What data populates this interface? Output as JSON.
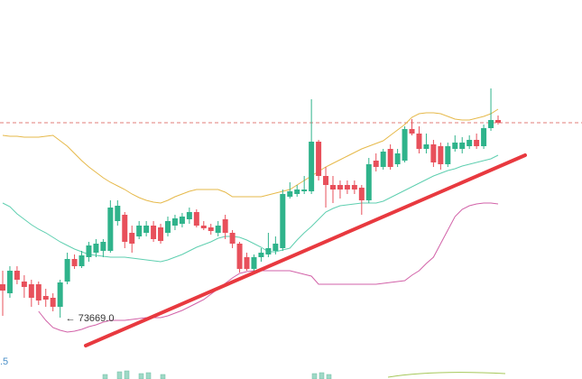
{
  "chart_data": {
    "type": "candlestick",
    "ylim": [
      73601,
      74021
    ],
    "up_color": "#2fb38b",
    "down_color": "#e8505b",
    "open": [
      73706,
      73696,
      73721,
      73709,
      73706,
      73706,
      73693,
      73691,
      73681,
      73709,
      73734,
      73726,
      73736,
      73741,
      73743,
      73743,
      73776,
      73783,
      73763,
      73759,
      73763,
      73771,
      73769,
      73763,
      73771,
      73773,
      73778,
      73786,
      73771,
      73769,
      73763,
      73778,
      73763,
      73751,
      73736,
      73723,
      73736,
      73739,
      73743,
      73746,
      73803,
      73806,
      73809,
      73809,
      73864,
      73826,
      73816,
      73816,
      73816,
      73816,
      73813,
      73799,
      73843,
      73836,
      73856,
      73839,
      73843,
      73878,
      73873,
      73856,
      73861,
      73859,
      73839,
      73856,
      73856,
      73859,
      73866,
      73859,
      73879,
      73888
    ],
    "high": [
      73721,
      73726,
      73726,
      73716,
      73711,
      73709,
      73701,
      73696,
      73711,
      73741,
      73739,
      73743,
      73753,
      73756,
      73756,
      73799,
      73799,
      73786,
      73771,
      73776,
      73776,
      73776,
      73773,
      73781,
      73783,
      73785,
      73791,
      73789,
      73776,
      73773,
      73776,
      73783,
      73766,
      73753,
      73741,
      73739,
      73746,
      73763,
      73759,
      73811,
      73819,
      73816,
      73826,
      73911,
      73866,
      73836,
      73826,
      73821,
      73821,
      73821,
      73816,
      73846,
      73851,
      73856,
      73861,
      73856,
      73881,
      73889,
      73881,
      73873,
      73866,
      73863,
      73863,
      73871,
      73869,
      73871,
      73873,
      73883,
      73923,
      73893
    ],
    "low": [
      73671,
      73691,
      73706,
      73691,
      73681,
      73683,
      73681,
      73676,
      73669,
      73706,
      73723,
      73724,
      73731,
      73736,
      73736,
      73741,
      73771,
      73746,
      73741,
      73756,
      73759,
      73753,
      73751,
      73759,
      73766,
      73769,
      73773,
      73769,
      73766,
      73761,
      73759,
      73756,
      73746,
      73719,
      73721,
      73719,
      73731,
      73736,
      73739,
      73743,
      73801,
      73803,
      73806,
      73806,
      73821,
      73791,
      73796,
      73801,
      73806,
      73806,
      73783,
      73796,
      73831,
      73833,
      73833,
      73836,
      73841,
      73871,
      73851,
      73851,
      73836,
      73833,
      73836,
      73853,
      73851,
      73856,
      73856,
      73856,
      73876,
      73883
    ],
    "close": [
      73699,
      73721,
      73711,
      73703,
      73691,
      73688,
      73689,
      73681,
      73708,
      73734,
      73726,
      73738,
      73749,
      73751,
      73753,
      73791,
      73793,
      73753,
      73751,
      73771,
      73771,
      73756,
      73754,
      73776,
      73779,
      73781,
      73786,
      73771,
      73768,
      73765,
      73771,
      73763,
      73751,
      73723,
      73723,
      73736,
      73741,
      73746,
      73751,
      73806,
      73809,
      73811,
      73811,
      73864,
      73826,
      73816,
      73811,
      73811,
      73811,
      73811,
      73799,
      73839,
      73836,
      73853,
      73836,
      73851,
      73878,
      73873,
      73856,
      73861,
      73841,
      73839,
      73859,
      73863,
      73863,
      73866,
      73859,
      73879,
      73888,
      73885
    ],
    "bands": [
      {
        "color": "#e6b94a",
        "values": [
          73871,
          73870,
          73870,
          73869,
          73869,
          73869,
          73870,
          73871,
          73865,
          73859,
          73851,
          73843,
          73836,
          73830,
          73824,
          73819,
          73815,
          73811,
          73806,
          73802,
          73799,
          73797,
          73796,
          73799,
          73803,
          73806,
          73809,
          73811,
          73811,
          73811,
          73811,
          73808,
          73803,
          73803,
          73803,
          73803,
          73803,
          73805,
          73807,
          73809,
          73811,
          73816,
          73821,
          73826,
          73831,
          73836,
          73840,
          73844,
          73848,
          73852,
          73856,
          73859,
          73862,
          73865,
          73871,
          73877,
          73883,
          73891,
          73895,
          73896,
          73896,
          73895,
          73892,
          73889,
          73888,
          73888,
          73890,
          73892,
          73895,
          73900
        ]
      },
      {
        "color": "#5fcfb0",
        "values": [
          73796,
          73792,
          73784,
          73778,
          73772,
          73767,
          73763,
          73758,
          73753,
          73749,
          73745,
          73742,
          73739,
          73738,
          73737,
          73736,
          73736,
          73736,
          73735,
          73734,
          73733,
          73732,
          73731,
          73733,
          73736,
          73739,
          73743,
          73747,
          73750,
          73753,
          73757,
          73759,
          73759,
          73758,
          73755,
          73751,
          73747,
          73742,
          73742,
          73744,
          73746,
          73755,
          73763,
          73770,
          73778,
          73786,
          73790,
          73793,
          73794,
          73795,
          73796,
          73796,
          73796,
          73798,
          73802,
          73806,
          73810,
          73814,
          73818,
          73822,
          73826,
          73829,
          73832,
          73834,
          73837,
          73839,
          73841,
          73843,
          73845,
          73849
        ]
      },
      {
        "color": "#d262a8",
        "values": [
          null,
          null,
          null,
          null,
          null,
          73676,
          73666,
          73658,
          73655,
          73653,
          73654,
          73656,
          73659,
          73661,
          73664,
          73666,
          73666,
          73666,
          73667,
          73668,
          73669,
          73669,
          73669,
          73671,
          73674,
          73677,
          73681,
          73685,
          73689,
          73695,
          73701,
          73707,
          73713,
          73718,
          73720,
          73721,
          73721,
          73721,
          73721,
          73721,
          73721,
          73719,
          73717,
          73715,
          73706,
          73706,
          73706,
          73706,
          73706,
          73706,
          73706,
          73706,
          73706,
          73707,
          73708,
          73709,
          73710,
          73716,
          73721,
          73729,
          73736,
          73751,
          73766,
          73781,
          73789,
          73793,
          73795,
          73796,
          73796,
          73795
        ]
      }
    ],
    "last_price": 73885,
    "annotation": "← 73669.0",
    "annotation_index": 8,
    "volume_label": ".5"
  }
}
